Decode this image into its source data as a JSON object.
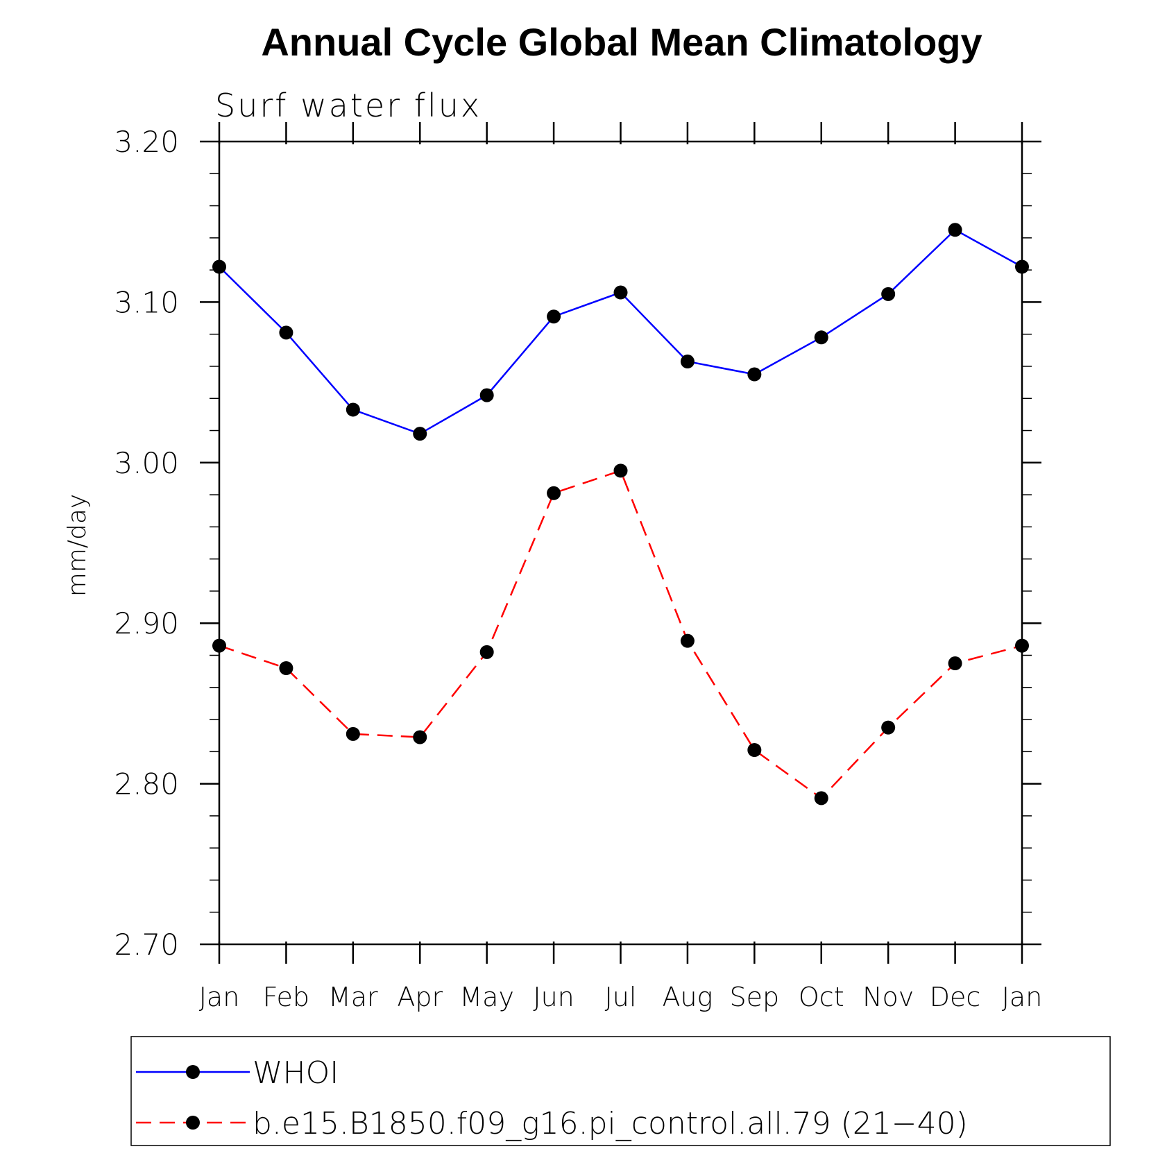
{
  "chart_data": {
    "type": "line",
    "title": "Annual Cycle Global Mean Climatology",
    "subtitle": "Surf  water  flux",
    "xlabel": "",
    "ylabel": "mm/day",
    "categories": [
      "Jan",
      "Feb",
      "Mar",
      "Apr",
      "May",
      "Jun",
      "Jul",
      "Aug",
      "Sep",
      "Oct",
      "Nov",
      "Dec",
      "Jan"
    ],
    "ylim": [
      2.7,
      3.2
    ],
    "yticks": [
      2.7,
      2.8,
      2.9,
      3.0,
      3.1,
      3.2
    ],
    "ytick_labels": [
      "2.70",
      "2.80",
      "2.90",
      "3.00",
      "3.10",
      "3.20"
    ],
    "series": [
      {
        "name": "WHOI",
        "color": "#0000ff",
        "dash": "solid",
        "marker": "filled-circle",
        "values": [
          3.122,
          3.081,
          3.033,
          3.018,
          3.042,
          3.091,
          3.106,
          3.063,
          3.055,
          3.078,
          3.105,
          3.145,
          3.122
        ]
      },
      {
        "name": "b.e15.B1850.f09_g16.pi_control.all.79 (21−40)",
        "color": "#ff0000",
        "dash": "dashed",
        "marker": "filled-circle",
        "values": [
          2.886,
          2.872,
          2.831,
          2.829,
          2.882,
          2.981,
          2.995,
          2.889,
          2.821,
          2.791,
          2.835,
          2.875,
          2.886
        ]
      }
    ],
    "grid": false,
    "legend_position": "bottom"
  }
}
